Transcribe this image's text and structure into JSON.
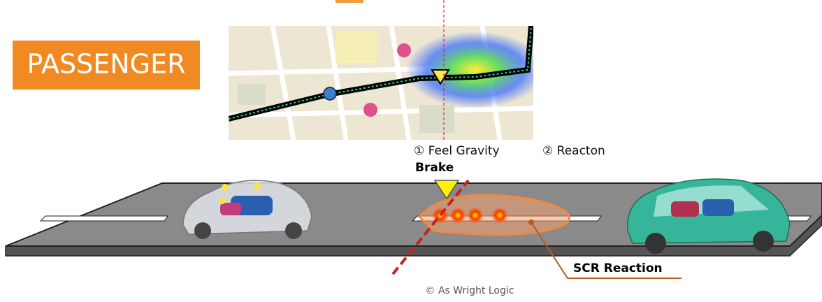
{
  "badge": "PASSENGER",
  "labels": {
    "feel_gravity": "① Feel Gravity",
    "reaction": "② Reacton",
    "brake": "Brake",
    "scr_reaction": "SCR Reaction"
  },
  "copyright": "© As Wright Logic"
}
